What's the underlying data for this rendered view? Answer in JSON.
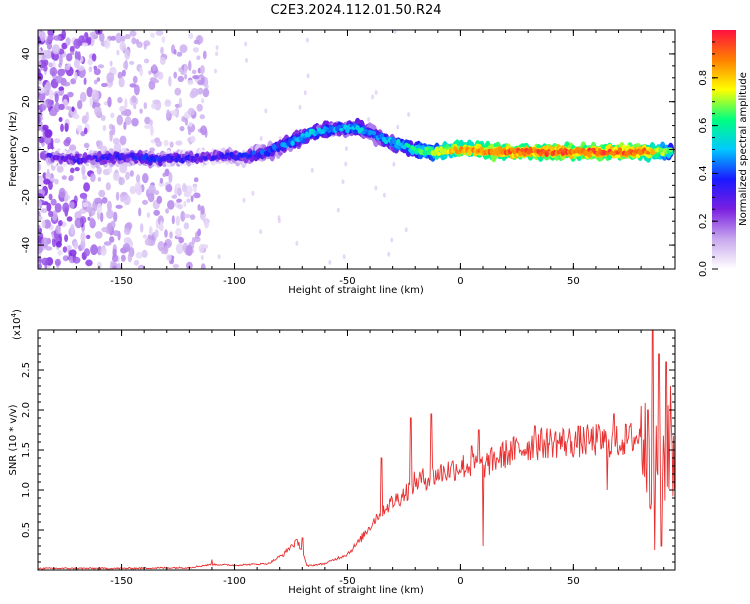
{
  "title": "C2E3.2024.112.01.50.R24",
  "colors": {
    "snr_line": "#e83030",
    "cmap": [
      "#ffffff",
      "#c8a8ee",
      "#7a1fe0",
      "#1a1aff",
      "#00c8ff",
      "#00ff80",
      "#ffff00",
      "#ff8000",
      "#ff1040"
    ]
  },
  "chart_data": [
    {
      "type": "heatmap",
      "name": "spectrogram",
      "xlabel": "Height of straight line (km)",
      "ylabel": "Frequency (Hz)",
      "xlim": [
        -187,
        95
      ],
      "ylim": [
        -50,
        50
      ],
      "xticks": [
        -150,
        -100,
        -50,
        0,
        50
      ],
      "yticks": [
        -40,
        -20,
        0,
        20,
        40
      ],
      "colorbar": {
        "label": "Normalized spectral amplitude",
        "range": [
          0,
          1
        ],
        "ticks": [
          "0.0",
          "0.2",
          "0.4",
          "0.6",
          "0.8"
        ],
        "tick_values": [
          0.0,
          0.2,
          0.4,
          0.6,
          0.8
        ]
      },
      "ridge": {
        "x": [
          -185,
          -165,
          -150,
          -130,
          -110,
          -95,
          -85,
          -75,
          -65,
          -55,
          -45,
          -38,
          -30,
          -20,
          -10,
          0,
          20,
          40,
          60,
          80,
          95
        ],
        "y": [
          -3,
          -4,
          -3,
          -4,
          -3,
          -3,
          -1,
          3,
          7,
          9,
          9,
          6,
          3,
          0,
          -1,
          0,
          -1,
          -1,
          -1,
          -1,
          -1
        ],
        "amplitude": [
          0.25,
          0.3,
          0.35,
          0.35,
          0.3,
          0.35,
          0.4,
          0.45,
          0.5,
          0.45,
          0.5,
          0.45,
          0.5,
          0.6,
          0.7,
          0.85,
          0.9,
          0.9,
          0.92,
          0.9,
          0.6
        ]
      }
    },
    {
      "type": "line",
      "name": "snr",
      "xlabel": "Height of straight line (km)",
      "ylabel": "SNR (10 * v/v)",
      "yscale_label": "(x10",
      "yscale_exp": "4",
      "yscale_close": ")",
      "xlim": [
        -187,
        95
      ],
      "ylim": [
        0,
        3.0
      ],
      "xticks": [
        -150,
        -100,
        -50,
        0,
        50
      ],
      "yticks": [
        0.5,
        1.0,
        1.5,
        2.0,
        2.5
      ],
      "ytick_labels": [
        "0.5",
        "1.0",
        "1.5",
        "2.0",
        "2.5"
      ],
      "envelope": {
        "x": [
          -187,
          -150,
          -120,
          -110,
          -100,
          -85,
          -78,
          -75,
          -72,
          -70,
          -68,
          -60,
          -50,
          -45,
          -40,
          -35,
          -30,
          -25,
          -20,
          -10,
          0,
          10,
          20,
          25,
          30,
          40,
          50,
          60,
          70,
          75,
          80,
          85,
          90,
          95
        ],
        "y": [
          0.02,
          0.02,
          0.03,
          0.07,
          0.06,
          0.08,
          0.2,
          0.3,
          0.35,
          0.25,
          0.05,
          0.08,
          0.2,
          0.35,
          0.55,
          0.75,
          0.85,
          0.95,
          1.1,
          1.2,
          1.3,
          1.3,
          1.45,
          1.5,
          1.55,
          1.6,
          1.6,
          1.62,
          1.6,
          1.65,
          1.65,
          1.3,
          1.4,
          1.5
        ]
      },
      "spikes": [
        {
          "x": -110,
          "y": 0.13
        },
        {
          "x": -70,
          "y": 0.4
        },
        {
          "x": -35,
          "y": 1.4
        },
        {
          "x": -22,
          "y": 1.9
        },
        {
          "x": -13,
          "y": 1.95
        },
        {
          "x": 5,
          "y": 1.55
        },
        {
          "x": 8,
          "y": 1.75
        },
        {
          "x": 10,
          "y": 0.3
        },
        {
          "x": 33,
          "y": 1.8
        },
        {
          "x": 65,
          "y": 1.0
        },
        {
          "x": 68,
          "y": 1.95
        },
        {
          "x": 80,
          "y": 2.05
        },
        {
          "x": 83,
          "y": 2.0
        },
        {
          "x": 85,
          "y": 3.0
        },
        {
          "x": 86,
          "y": 0.25
        },
        {
          "x": 88,
          "y": 2.7
        },
        {
          "x": 89,
          "y": 0.3
        },
        {
          "x": 91,
          "y": 2.6
        },
        {
          "x": 93,
          "y": 2.3
        }
      ]
    }
  ]
}
